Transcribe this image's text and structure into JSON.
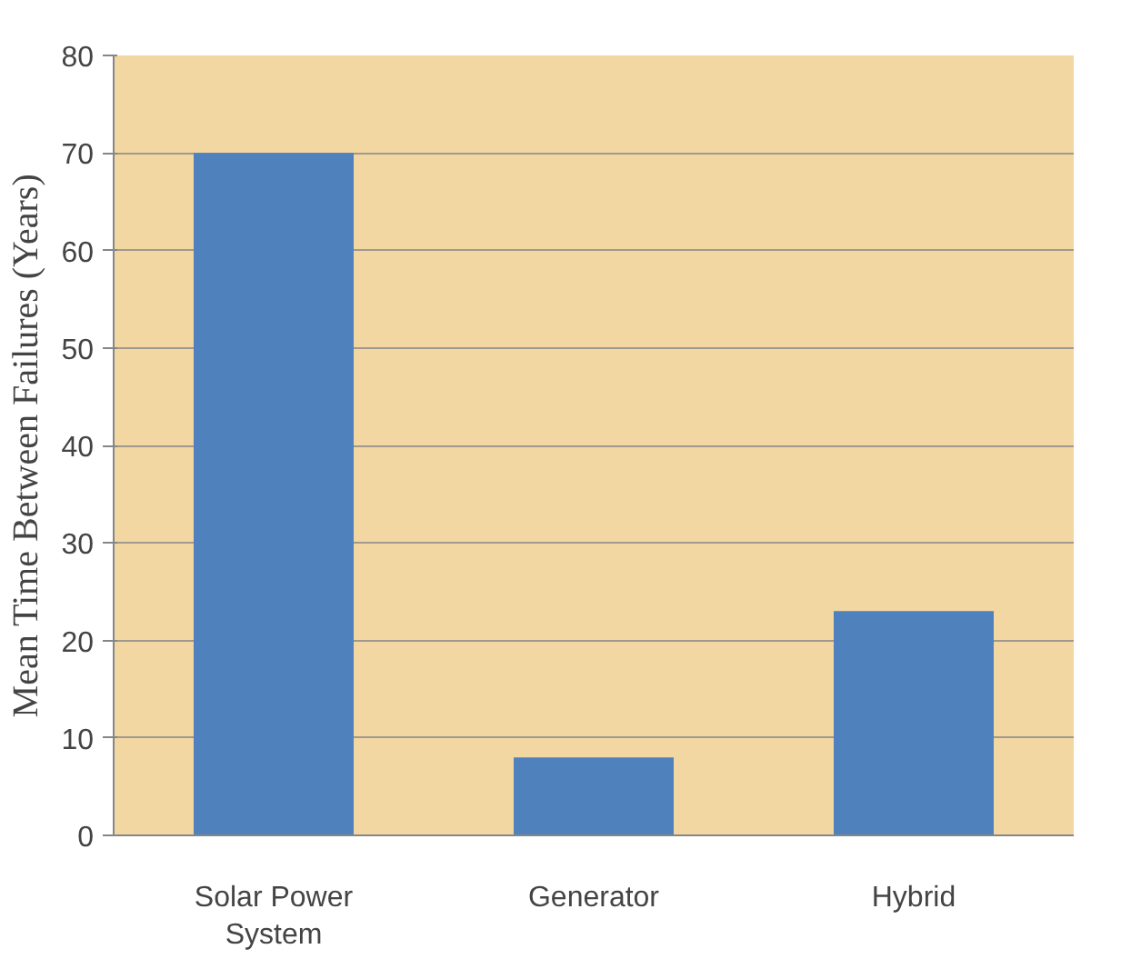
{
  "chart_data": {
    "type": "bar",
    "ylabel": "Mean Time Between Failures (Years)",
    "categories": [
      "Solar Power System",
      "Generator",
      "Hybrid"
    ],
    "values": [
      70,
      8,
      23
    ],
    "color": "#4f81bd",
    "ylim": [
      0,
      80
    ],
    "yticks": [
      0,
      10,
      20,
      30,
      40,
      50,
      60,
      70,
      80
    ],
    "grid": "y"
  }
}
